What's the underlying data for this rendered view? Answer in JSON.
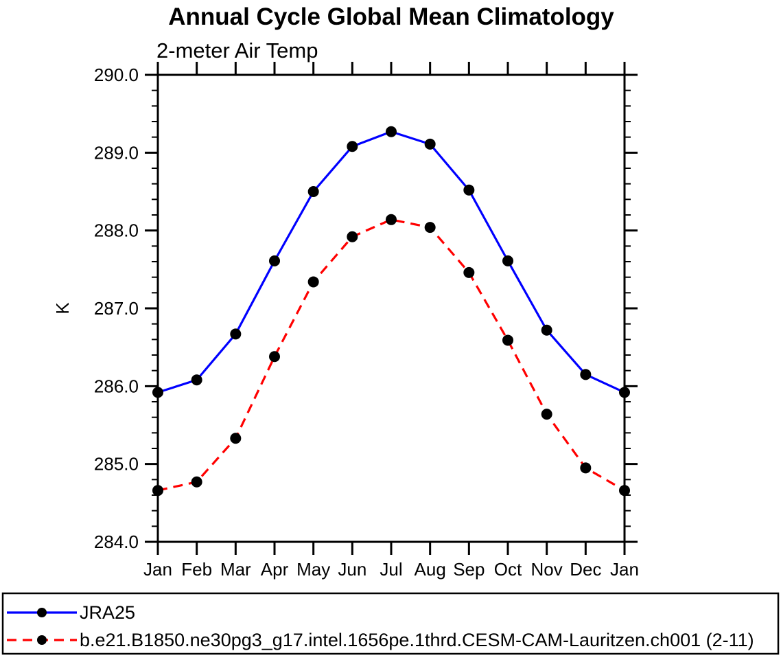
{
  "chart_data": {
    "type": "line",
    "title": "Annual Cycle Global Mean Climatology",
    "subtitle": "2-meter Air Temp",
    "xlabel": "",
    "ylabel": "K",
    "x_categories": [
      "Jan",
      "Feb",
      "Mar",
      "Apr",
      "May",
      "Jun",
      "Jul",
      "Aug",
      "Sep",
      "Oct",
      "Nov",
      "Dec",
      "Jan"
    ],
    "ylim": [
      284.0,
      290.0
    ],
    "y_major_ticks": [
      284.0,
      285.0,
      286.0,
      287.0,
      288.0,
      289.0,
      290.0
    ],
    "y_tick_labels": [
      "284.0",
      "285.0",
      "286.0",
      "287.0",
      "288.0",
      "289.0",
      "290.0"
    ],
    "y_minor_step": 0.2,
    "grid": false,
    "legend_position": "bottom-box",
    "axis_color": "#000000",
    "marker_shape": "circle",
    "series": [
      {
        "name": "JRA25",
        "color": "#0000ff",
        "line_style": "solid",
        "marker_color": "#000000",
        "values": [
          285.92,
          286.08,
          286.67,
          287.61,
          288.5,
          289.08,
          289.27,
          289.11,
          288.52,
          287.61,
          286.72,
          286.15,
          285.92
        ]
      },
      {
        "name": "b.e21.B1850.ne30pg3_g17.intel.1656pe.1thrd.CESM-CAM-Lauritzen.ch001 (2-11)",
        "color": "#ff0000",
        "line_style": "dashed",
        "marker_color": "#000000",
        "values": [
          284.66,
          284.77,
          285.33,
          286.38,
          287.34,
          287.92,
          288.14,
          288.04,
          287.46,
          286.59,
          285.64,
          284.95,
          284.66
        ]
      }
    ]
  }
}
